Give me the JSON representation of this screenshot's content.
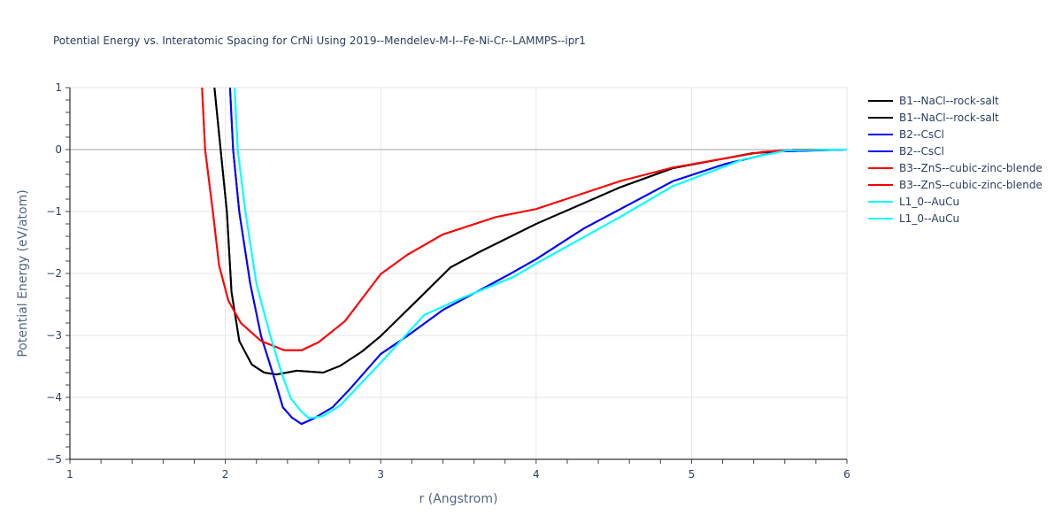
{
  "chart_data": {
    "type": "line",
    "title": "Potential Energy vs. Interatomic Spacing for CrNi Using 2019--Mendelev-M-I--Fe-Ni-Cr--LAMMPS--ipr1",
    "xlabel": "r (Angstrom)",
    "ylabel": "Potential Energy (eV/atom)",
    "xlim": [
      1,
      6
    ],
    "ylim": [
      -5,
      1
    ],
    "xticks": [
      "1",
      "2",
      "3",
      "4",
      "5",
      "6"
    ],
    "yticks": [
      "1",
      "0",
      "−1",
      "−2",
      "−3",
      "−4",
      "−5"
    ],
    "xtick_values": [
      1,
      2,
      3,
      4,
      5,
      6
    ],
    "ytick_values": [
      1,
      0,
      -1,
      -2,
      -3,
      -4,
      -5
    ],
    "grid": true,
    "legend_position": "top-right",
    "series": [
      {
        "name": "B1--NaCl--rock-salt",
        "color": "#000000",
        "x": [
          1.93,
          1.97,
          2.01,
          2.04,
          2.09,
          2.17,
          2.25,
          2.33,
          2.46,
          2.63,
          2.74,
          2.88,
          3.0,
          3.26,
          3.45,
          3.63,
          4.0,
          4.54,
          4.88,
          5.39,
          5.68,
          6.0
        ],
        "y": [
          1.0,
          0.0,
          -1.01,
          -2.3,
          -3.09,
          -3.47,
          -3.6,
          -3.63,
          -3.57,
          -3.6,
          -3.49,
          -3.26,
          -3.01,
          -2.37,
          -1.9,
          -1.66,
          -1.2,
          -0.61,
          -0.3,
          -0.06,
          0.0,
          0.0
        ]
      },
      {
        "name": "B1--NaCl--rock-salt",
        "color": "#000000",
        "x": [
          1.93,
          1.97,
          2.01,
          2.04,
          2.09,
          2.17,
          2.25,
          2.33,
          2.46,
          2.63,
          2.74,
          2.88,
          3.0,
          3.26,
          3.45,
          3.63,
          4.0,
          4.54,
          4.88,
          5.39,
          5.68,
          6.0
        ],
        "y": [
          1.0,
          0.0,
          -1.01,
          -2.3,
          -3.09,
          -3.47,
          -3.6,
          -3.63,
          -3.57,
          -3.6,
          -3.49,
          -3.26,
          -3.01,
          -2.37,
          -1.9,
          -1.66,
          -1.2,
          -0.61,
          -0.3,
          -0.06,
          0.0,
          0.0
        ]
      },
      {
        "name": "B2--CsCl",
        "color": "#0000ff",
        "x": [
          2.03,
          2.05,
          2.09,
          2.16,
          2.23,
          2.32,
          2.37,
          2.43,
          2.49,
          2.57,
          2.69,
          2.8,
          3.0,
          3.17,
          3.4,
          3.83,
          4.0,
          4.31,
          4.88,
          5.22,
          5.56,
          6.0
        ],
        "y": [
          1.0,
          0.0,
          -1.01,
          -2.16,
          -3.01,
          -3.73,
          -4.16,
          -4.33,
          -4.43,
          -4.34,
          -4.16,
          -3.87,
          -3.3,
          -3.01,
          -2.59,
          -2.01,
          -1.77,
          -1.27,
          -0.51,
          -0.23,
          -0.03,
          0.0
        ]
      },
      {
        "name": "B2--CsCl",
        "color": "#0000ff",
        "x": [
          2.03,
          2.05,
          2.09,
          2.16,
          2.23,
          2.32,
          2.37,
          2.43,
          2.49,
          2.57,
          2.69,
          2.8,
          3.0,
          3.17,
          3.4,
          3.83,
          4.0,
          4.31,
          4.88,
          5.22,
          5.56,
          6.0
        ],
        "y": [
          1.0,
          0.0,
          -1.01,
          -2.16,
          -3.01,
          -3.73,
          -4.16,
          -4.33,
          -4.43,
          -4.34,
          -4.16,
          -3.87,
          -3.3,
          -3.01,
          -2.59,
          -2.01,
          -1.77,
          -1.27,
          -0.51,
          -0.23,
          -0.03,
          0.0
        ]
      },
      {
        "name": "B3--ZnS--cubic-zinc-blende",
        "color": "#ff0000",
        "x": [
          1.85,
          1.87,
          1.92,
          1.96,
          2.02,
          2.1,
          2.23,
          2.38,
          2.49,
          2.6,
          2.77,
          3.0,
          3.17,
          3.4,
          3.74,
          4.0,
          4.54,
          4.88,
          5.45,
          5.68,
          6.0
        ],
        "y": [
          1.0,
          0.0,
          -1.01,
          -1.87,
          -2.44,
          -2.8,
          -3.09,
          -3.24,
          -3.24,
          -3.11,
          -2.77,
          -2.01,
          -1.7,
          -1.37,
          -1.09,
          -0.96,
          -0.51,
          -0.29,
          -0.04,
          0.0,
          0.0
        ]
      },
      {
        "name": "B3--ZnS--cubic-zinc-blende",
        "color": "#ff0000",
        "x": [
          1.85,
          1.87,
          1.92,
          1.96,
          2.02,
          2.1,
          2.23,
          2.38,
          2.49,
          2.6,
          2.77,
          3.0,
          3.17,
          3.4,
          3.74,
          4.0,
          4.54,
          4.88,
          5.45,
          5.68,
          6.0
        ],
        "y": [
          1.0,
          0.0,
          -1.01,
          -1.87,
          -2.44,
          -2.8,
          -3.09,
          -3.24,
          -3.24,
          -3.11,
          -2.77,
          -2.01,
          -1.7,
          -1.37,
          -1.09,
          -0.96,
          -0.51,
          -0.29,
          -0.04,
          0.0,
          0.0
        ]
      },
      {
        "name": "L1_0--AuCu",
        "color": "#00ffff",
        "x": [
          2.06,
          2.08,
          2.13,
          2.2,
          2.29,
          2.36,
          2.42,
          2.49,
          2.54,
          2.63,
          2.74,
          3.0,
          3.28,
          3.51,
          3.85,
          4.0,
          4.54,
          4.88,
          5.33,
          5.62,
          6.0
        ],
        "y": [
          1.0,
          0.0,
          -1.01,
          -2.16,
          -3.01,
          -3.59,
          -4.01,
          -4.23,
          -4.34,
          -4.3,
          -4.13,
          -3.44,
          -2.67,
          -2.41,
          -2.06,
          -1.84,
          -1.09,
          -0.59,
          -0.16,
          -0.01,
          0.0
        ]
      },
      {
        "name": "L1_0--AuCu",
        "color": "#00ffff",
        "x": [
          2.06,
          2.08,
          2.13,
          2.2,
          2.29,
          2.36,
          2.42,
          2.49,
          2.54,
          2.63,
          2.74,
          3.0,
          3.28,
          3.51,
          3.85,
          4.0,
          4.54,
          4.88,
          5.33,
          5.62,
          6.0
        ],
        "y": [
          1.0,
          0.0,
          -1.01,
          -2.16,
          -3.01,
          -3.59,
          -4.01,
          -4.23,
          -4.34,
          -4.3,
          -4.13,
          -3.44,
          -2.67,
          -2.41,
          -2.06,
          -1.84,
          -1.09,
          -0.59,
          -0.16,
          -0.01,
          0.0
        ]
      }
    ]
  }
}
